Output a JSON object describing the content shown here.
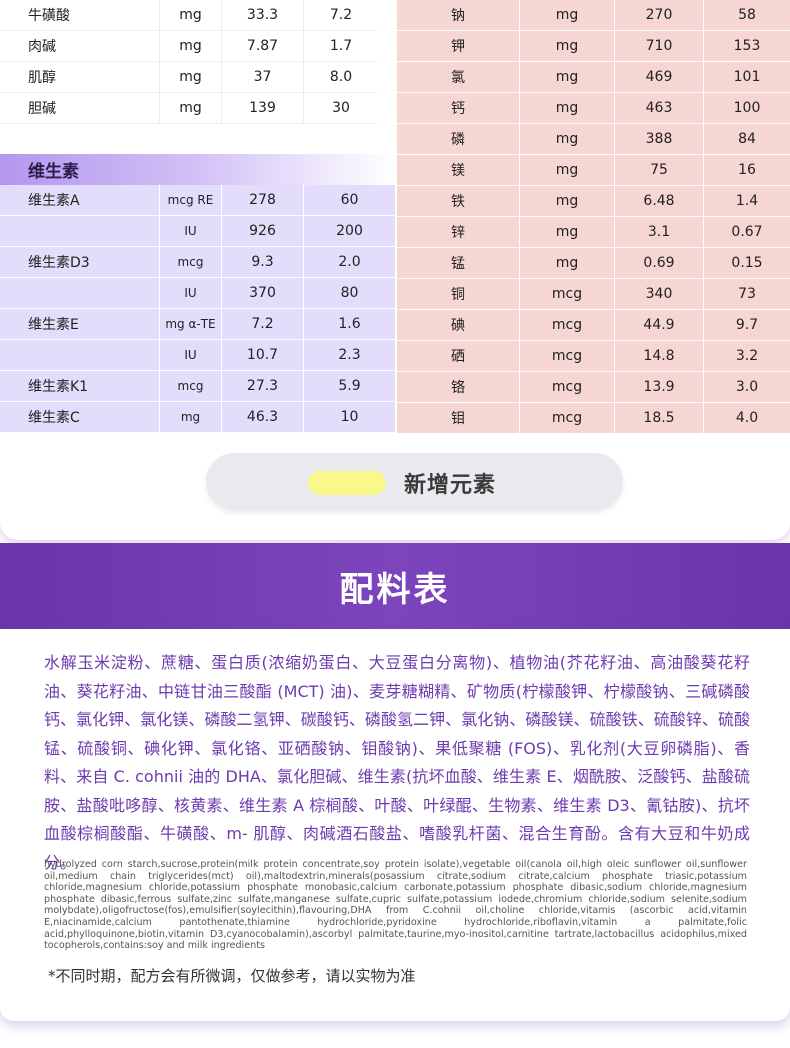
{
  "upper_left_rows": [
    {
      "name": "牛磺酸",
      "unit": "mg",
      "v1": "33.3",
      "v2": "7.2"
    },
    {
      "name": "肉碱",
      "unit": "mg",
      "v1": "7.87",
      "v2": "1.7"
    },
    {
      "name": "肌醇",
      "unit": "mg",
      "v1": "37",
      "v2": "8.0"
    },
    {
      "name": "胆碱",
      "unit": "mg",
      "v1": "139",
      "v2": "30"
    }
  ],
  "vitamin_section": {
    "title": "维生素",
    "rows": [
      {
        "name": "维生素A",
        "unit": "mcg RE",
        "v1": "278",
        "v2": "60"
      },
      {
        "name": "",
        "unit": "IU",
        "v1": "926",
        "v2": "200"
      },
      {
        "name": "维生素D3",
        "unit": "mcg",
        "v1": "9.3",
        "v2": "2.0"
      },
      {
        "name": "",
        "unit": "IU",
        "v1": "370",
        "v2": "80"
      },
      {
        "name": "维生素E",
        "unit": "mg α-TE",
        "v1": "7.2",
        "v2": "1.6"
      },
      {
        "name": "",
        "unit": "IU",
        "v1": "10.7",
        "v2": "2.3"
      },
      {
        "name": "维生素K1",
        "unit": "mcg",
        "v1": "27.3",
        "v2": "5.9"
      },
      {
        "name": "维生素C",
        "unit": "mg",
        "v1": "46.3",
        "v2": "10"
      }
    ]
  },
  "minerals": [
    {
      "name": "钠",
      "unit": "mg",
      "v1": "270",
      "v2": "58"
    },
    {
      "name": "钾",
      "unit": "mg",
      "v1": "710",
      "v2": "153"
    },
    {
      "name": "氯",
      "unit": "mg",
      "v1": "469",
      "v2": "101"
    },
    {
      "name": "钙",
      "unit": "mg",
      "v1": "463",
      "v2": "100"
    },
    {
      "name": "磷",
      "unit": "mg",
      "v1": "388",
      "v2": "84"
    },
    {
      "name": "镁",
      "unit": "mg",
      "v1": "75",
      "v2": "16"
    },
    {
      "name": "铁",
      "unit": "mg",
      "v1": "6.48",
      "v2": "1.4"
    },
    {
      "name": "锌",
      "unit": "mg",
      "v1": "3.1",
      "v2": "0.67"
    },
    {
      "name": "锰",
      "unit": "mg",
      "v1": "0.69",
      "v2": "0.15"
    },
    {
      "name": "铜",
      "unit": "mcg",
      "v1": "340",
      "v2": "73"
    },
    {
      "name": "碘",
      "unit": "mcg",
      "v1": "44.9",
      "v2": "9.7"
    },
    {
      "name": "硒",
      "unit": "mcg",
      "v1": "14.8",
      "v2": "3.2"
    },
    {
      "name": "铬",
      "unit": "mcg",
      "v1": "13.9",
      "v2": "3.0"
    },
    {
      "name": "钼",
      "unit": "mcg",
      "v1": "18.5",
      "v2": "4.0"
    }
  ],
  "legend": {
    "label": "新增元素",
    "swatch_color": "#faf88a"
  },
  "ingredients": {
    "title": "配料表",
    "chinese": "水解玉米淀粉、蔗糖、蛋白质(浓缩奶蛋白、大豆蛋白分离物)、植物油(芥花籽油、高油酸葵花籽油、葵花籽油、中链甘油三酸酯 (MCT) 油)、麦芽糖糊精、矿物质(柠檬酸钾、柠檬酸钠、三碱磷酸钙、氯化钾、氯化镁、磷酸二氢钾、碳酸钙、磷酸氢二钾、氯化钠、磷酸镁、硫酸铁、硫酸锌、硫酸锰、硫酸铜、碘化钾、氯化铬、亚硒酸钠、钼酸钠)、果低聚糖 (FOS)、乳化剂(大豆卵磷脂)、香料、来自 C. cohnii 油的 DHA、氯化胆碱、维生素(抗坏血酸、维生素 E、烟酰胺、泛酸钙、盐酸硫胺、盐酸吡哆醇、核黄素、维生素 A 棕榈酸、叶酸、叶绿醌、生物素、维生素 D3、氰钴胺)、抗坏血酸棕榈酸酯、牛磺酸、m- 肌醇、肉碱酒石酸盐、嗜酸乳杆菌、混合生育酚。含有大豆和牛奶成分。",
    "english": "hydrolyzed corn starch,sucrose,protein(milk protein concentrate,soy protein isolate),vegetable oil(canola oil,high oleic sunflower oil,sunflower oil,medium chain triglycerides(mct) oil),maltodextrin,minerals(posassium citrate,sodium citrate,calcium phosphate triasic,potassium chloride,magnesium chloride,potassium phosphate monobasic,calcium carbonate,potassium phosphate dibasic,sodium chloride,magnesium phosphate dibasic,ferrous sulfate,zinc sulfate,manganese sulfate,cupric sulfate,potassium iodede,chromium chloride,sodium selenite,sodium molybdate),oligofructose(fos),emulsifier(soylecithin),flavouring,DHA from C.cohnii oil,choline chloride,vitamis (ascorbic acid,vitamin E,niacinamide,calcium pantothenate,thiamine hydrochloride,pyridoxine hydrochloride,riboflavin,vitamin a palmitate,folic acid,phylloquinone,biotin,vitamin D3,cyanocobalamin),ascorbyl palmitate,taurine,myo-inositol,carnitine tartrate,lactobacillus acidophilus,mixed tocopherols,contains:soy and milk ingredients",
    "note": "*不同时期，配方会有所微调，仅做参考，请以实物为准"
  },
  "colors": {
    "vitamin_row_bg": "#e3dcfa",
    "mineral_row_bg": "#f6d6d2",
    "band_purple": "#6a35a8",
    "ingredient_text": "#6d3bb0"
  }
}
